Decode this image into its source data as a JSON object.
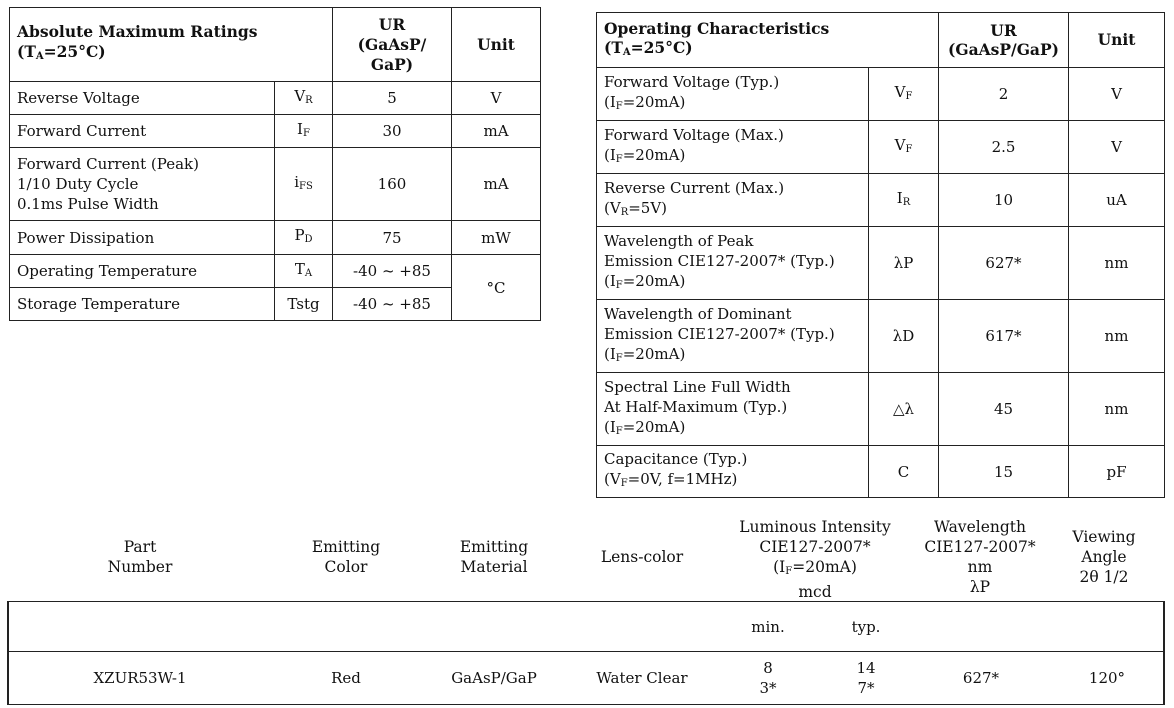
{
  "abs_max": {
    "title": "Absolute Maximum Ratings",
    "cond_prefix": "(T",
    "cond_sub": "A",
    "cond_suffix": "=25°C)",
    "col_ur": "UR\n(GaAsP/\nGaP)",
    "col_unit": "Unit",
    "rows": [
      {
        "param": "Reverse Voltage",
        "sym": "V",
        "sym_sub": "R",
        "value": "5",
        "unit": "V"
      },
      {
        "param": "Forward Current",
        "sym": "I",
        "sym_sub": "F",
        "value": "30",
        "unit": "mA"
      },
      {
        "param": "Forward Current (Peak)\n1/10 Duty Cycle\n0.1ms Pulse Width",
        "sym": "i",
        "sym_sub": "FS",
        "value": "160",
        "unit": "mA"
      },
      {
        "param": "Power Dissipation",
        "sym": "P",
        "sym_sub": "D",
        "value": "75",
        "unit": "mW"
      },
      {
        "param": "Operating Temperature",
        "sym": "T",
        "sym_sub": "A",
        "value": "-40 ~ +85",
        "unit": "°C"
      },
      {
        "param": "Storage Temperature",
        "sym": "Tstg",
        "sym_sub": "",
        "value": "-40 ~ +85",
        "unit": ""
      }
    ]
  },
  "op_char": {
    "title": "Operating Characteristics",
    "cond_prefix": "(T",
    "cond_sub": "A",
    "cond_suffix": "=25°C)",
    "col_ur": "UR\n(GaAsP/GaP)",
    "col_unit": "Unit",
    "rows": [
      {
        "param": "Forward Voltage (Typ.)",
        "cond_a": "(I",
        "cond_sub": "F",
        "cond_b": "=20mA)",
        "sym": "V",
        "sym_sub": "F",
        "value": "2",
        "unit": "V"
      },
      {
        "param": "Forward Voltage (Max.)",
        "cond_a": "(I",
        "cond_sub": "F",
        "cond_b": "=20mA)",
        "sym": "V",
        "sym_sub": "F",
        "value": "2.5",
        "unit": "V"
      },
      {
        "param": "Reverse Current (Max.)",
        "cond_a": "(V",
        "cond_sub": "R",
        "cond_b": "=5V)",
        "sym": "I",
        "sym_sub": "R",
        "value": "10",
        "unit": "uA"
      },
      {
        "param": "Wavelength of Peak\nEmission CIE127-2007* (Typ.)",
        "cond_a": "(I",
        "cond_sub": "F",
        "cond_b": "=20mA)",
        "sym": "λP",
        "sym_sub": "",
        "value": "627*",
        "unit": "nm"
      },
      {
        "param": "Wavelength of Dominant\nEmission CIE127-2007* (Typ.)",
        "cond_a": "(I",
        "cond_sub": "F",
        "cond_b": "=20mA)",
        "sym": "λD",
        "sym_sub": "",
        "value": "617*",
        "unit": "nm"
      },
      {
        "param": "Spectral Line Full Width\nAt Half-Maximum (Typ.)",
        "cond_a": "(I",
        "cond_sub": "F",
        "cond_b": "=20mA)",
        "sym": "△λ",
        "sym_sub": "",
        "value": "45",
        "unit": "nm"
      },
      {
        "param": "Capacitance (Typ.)",
        "cond_a": "(V",
        "cond_sub": "F",
        "cond_b": "=0V, f=1MHz)",
        "sym": "C",
        "sym_sub": "",
        "value": "15",
        "unit": "pF"
      }
    ]
  },
  "parts": {
    "headers": {
      "part_number": "Part\nNumber",
      "emitting_color": "Emitting\nColor",
      "emitting_material": "Emitting\nMaterial",
      "lens_color": "Lens-color",
      "luminous_a": "Luminous  Intensity\nCIE127-2007*",
      "luminous_cond_a": "(I",
      "luminous_cond_sub": "F",
      "luminous_cond_b": "=20mA)",
      "luminous_unit": "mcd",
      "wavelength": "Wavelength\nCIE127-2007*\nnm\nλP",
      "viewing": "Viewing\nAngle\n2θ 1/2"
    },
    "sub_min": "min.",
    "sub_typ": "typ.",
    "rows": [
      {
        "part": "XZUR53W-1",
        "color": "Red",
        "material": "GaAsP/GaP",
        "lens": "Water Clear",
        "min": "8\n3*",
        "typ": "14\n7*",
        "wavelength": "627*",
        "angle": "120°"
      }
    ]
  }
}
